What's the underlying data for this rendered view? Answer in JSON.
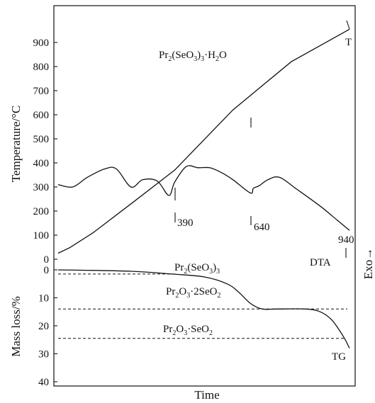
{
  "chart_data": {
    "type": "line",
    "title": "Pr2(SeO3)3·H2O",
    "xlabel": "Time",
    "ylabel_top": "Temperature/°C",
    "ylabel_bottom": "Mass loss/%",
    "ylabel_right": "Exo→",
    "temperature_axis": {
      "ylim": [
        0,
        960
      ],
      "ticks": [
        0,
        100,
        200,
        300,
        400,
        500,
        600,
        700,
        800,
        900
      ]
    },
    "mass_axis": {
      "ylim": [
        0,
        40
      ],
      "ticks": [
        0,
        10,
        20,
        30,
        40
      ]
    },
    "grid": false,
    "series": [
      {
        "name": "T",
        "curve": "T",
        "x": [
          0,
          0.04,
          0.12,
          0.25,
          0.4,
          0.6,
          0.8,
          1.0
        ],
        "y": [
          25,
          48,
          110,
          230,
          370,
          620,
          820,
          955
        ]
      },
      {
        "name": "DTA",
        "curve": "DTA",
        "x": [
          0,
          0.05,
          0.1,
          0.16,
          0.2,
          0.25,
          0.29,
          0.34,
          0.38,
          0.4,
          0.44,
          0.48,
          0.52,
          0.56,
          0.6,
          0.66,
          0.67,
          0.69,
          0.72,
          0.76,
          0.82,
          0.9,
          0.96,
          1.0
        ],
        "y": [
          310,
          300,
          340,
          375,
          375,
          300,
          330,
          325,
          265,
          320,
          385,
          380,
          380,
          360,
          330,
          275,
          295,
          305,
          330,
          340,
          290,
          220,
          160,
          120
        ]
      },
      {
        "name": "TG",
        "curve": "TG",
        "x": [
          0,
          0.25,
          0.39,
          0.5,
          0.58,
          0.62,
          0.66,
          0.7,
          0.75,
          0.85,
          0.9,
          0.94,
          0.98,
          1.0
        ],
        "y": [
          0,
          0.5,
          1.5,
          2.5,
          5,
          8,
          12,
          14,
          14,
          14,
          15,
          18,
          24,
          28
        ]
      }
    ],
    "dashed_levels": [
      {
        "label": "Pr2(SeO3)3",
        "mass_loss": 1.5
      },
      {
        "label": "Pr2O3·2SeO2",
        "mass_loss": 14
      },
      {
        "label": "Pr2O3·SeO2",
        "mass_loss": 24.5
      }
    ],
    "annotations": [
      "390",
      "640",
      "940",
      "T",
      "DTA",
      "TG"
    ]
  }
}
